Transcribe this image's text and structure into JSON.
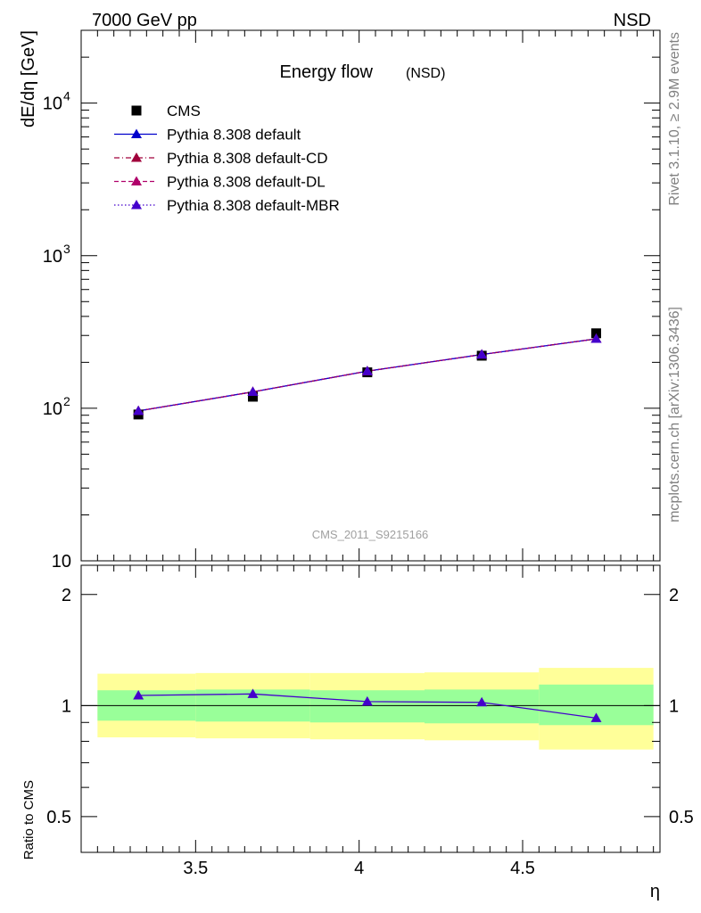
{
  "header": {
    "energy_label": "7000 GeV pp",
    "process_label": "NSD"
  },
  "side_labels": {
    "rivet": "Rivet 3.1.10, ≥ 2.9M events",
    "mcplots": "mcplots.cern.ch [arXiv:1306.3436]"
  },
  "watermark": "CMS_2011_S9215166",
  "colors": {
    "cms": "#000000",
    "default": "#0000cc",
    "default_cd": "#a0003a",
    "default_dl": "#b0006a",
    "default_mbr": "#4400cc",
    "band_inner": "#99ff99",
    "band_outer": "#ffff99"
  },
  "chart_data": [
    {
      "type": "line",
      "title": "Energy flow",
      "title_suffix": "(NSD)",
      "xlabel": "",
      "ylabel": "dE/dη [GeV]",
      "y_scale": "log",
      "xlim": [
        3.15,
        4.92
      ],
      "ylim": [
        10,
        30000
      ],
      "y_ticks": [
        {
          "value": 10,
          "base": "10",
          "exp": ""
        },
        {
          "value": 100,
          "base": "10",
          "exp": "2"
        },
        {
          "value": 1000,
          "base": "10",
          "exp": "3"
        },
        {
          "value": 10000,
          "base": "10",
          "exp": "4"
        }
      ],
      "legend": [
        {
          "label": "CMS",
          "marker": "square",
          "line": "none",
          "color_key": "cms"
        },
        {
          "label": "Pythia 8.308 default",
          "marker": "triangle",
          "line": "solid",
          "color_key": "default"
        },
        {
          "label": "Pythia 8.308 default-CD",
          "marker": "triangle",
          "line": "dashdot",
          "color_key": "default_cd"
        },
        {
          "label": "Pythia 8.308 default-DL",
          "marker": "triangle",
          "line": "dashed",
          "color_key": "default_dl"
        },
        {
          "label": "Pythia 8.308 default-MBR",
          "marker": "triangle",
          "line": "dotted",
          "color_key": "default_mbr"
        }
      ],
      "legend_position": "top-left",
      "x": [
        3.325,
        3.675,
        4.025,
        4.375,
        4.725
      ],
      "series": [
        {
          "name": "CMS",
          "values": [
            91,
            119,
            172,
            221,
            310
          ]
        },
        {
          "name": "Pythia 8.308 default",
          "values": [
            96,
            128,
            175,
            225,
            285
          ]
        },
        {
          "name": "Pythia 8.308 default-CD",
          "values": [
            96,
            128,
            175,
            225,
            285
          ]
        },
        {
          "name": "Pythia 8.308 default-DL",
          "values": [
            96,
            128,
            175,
            225,
            285
          ]
        },
        {
          "name": "Pythia 8.308 default-MBR",
          "values": [
            96,
            128,
            175,
            225,
            285
          ]
        }
      ]
    },
    {
      "type": "line",
      "title": "",
      "xlabel": "η",
      "ylabel": "Ratio to CMS",
      "y_scale": "log",
      "xlim": [
        3.15,
        4.92
      ],
      "ylim": [
        0.4,
        2.4
      ],
      "x_ticks": [
        "3.5",
        "4",
        "4.5"
      ],
      "x_tick_values": [
        3.5,
        4.0,
        4.5
      ],
      "y_ticks": [
        "0.5",
        "1",
        "2"
      ],
      "y_tick_values": [
        0.5,
        1,
        2
      ],
      "bins": [
        [
          3.15,
          3.5
        ],
        [
          3.5,
          3.85
        ],
        [
          3.85,
          4.2
        ],
        [
          4.2,
          4.55
        ],
        [
          4.55,
          4.9
        ]
      ],
      "band_inner": [
        [
          0.91,
          1.1
        ],
        [
          0.905,
          1.105
        ],
        [
          0.9,
          1.1
        ],
        [
          0.895,
          1.105
        ],
        [
          0.885,
          1.14
        ]
      ],
      "band_outer": [
        [
          0.82,
          1.22
        ],
        [
          0.815,
          1.225
        ],
        [
          0.81,
          1.225
        ],
        [
          0.805,
          1.23
        ],
        [
          0.76,
          1.265
        ]
      ],
      "x": [
        3.325,
        3.675,
        4.025,
        4.375,
        4.725
      ],
      "series": [
        {
          "name": "Pythia 8.308 default-MBR",
          "values": [
            1.065,
            1.075,
            1.025,
            1.02,
            0.925
          ]
        }
      ]
    }
  ]
}
